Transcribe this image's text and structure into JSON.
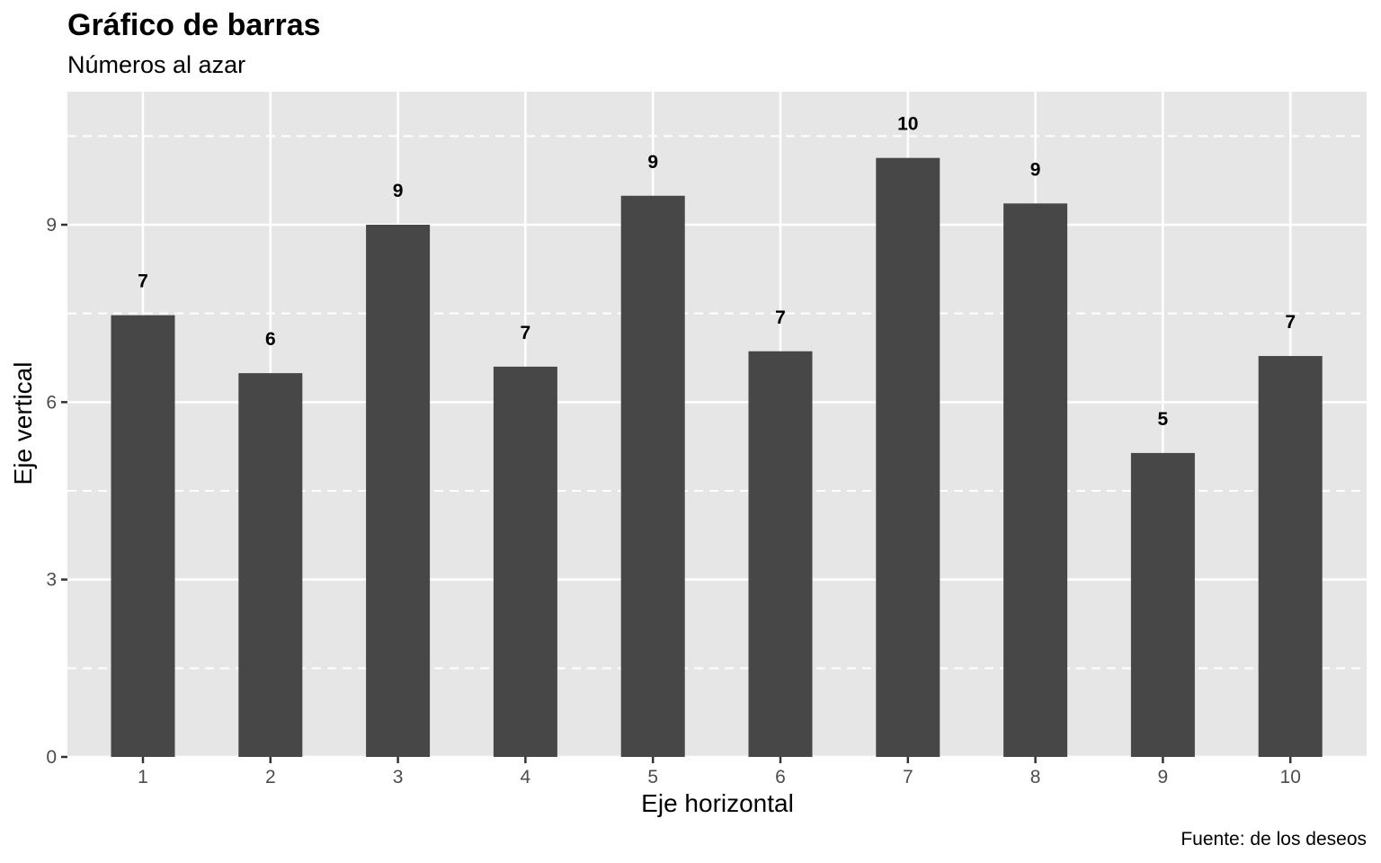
{
  "chart_data": {
    "type": "bar",
    "title": "Gráfico de barras",
    "subtitle": "Números al azar",
    "xlabel": "Eje horizontal",
    "ylabel": "Eje vertical",
    "caption": "Fuente: de los deseos",
    "categories": [
      "1",
      "2",
      "3",
      "4",
      "5",
      "6",
      "7",
      "8",
      "9",
      "10"
    ],
    "values": [
      7.47,
      6.49,
      9.0,
      6.6,
      9.49,
      6.86,
      10.13,
      9.36,
      5.14,
      6.78
    ],
    "data_labels": [
      "7",
      "6",
      "9",
      "7",
      "9",
      "7",
      "10",
      "9",
      "5",
      "7"
    ],
    "y_ticks": [
      0,
      3,
      6,
      9
    ],
    "ylim": [
      0,
      11.25
    ],
    "grid": true,
    "colors": {
      "bar": "#474747",
      "panel": "#e6e6e6",
      "grid": "#ffffff"
    }
  }
}
